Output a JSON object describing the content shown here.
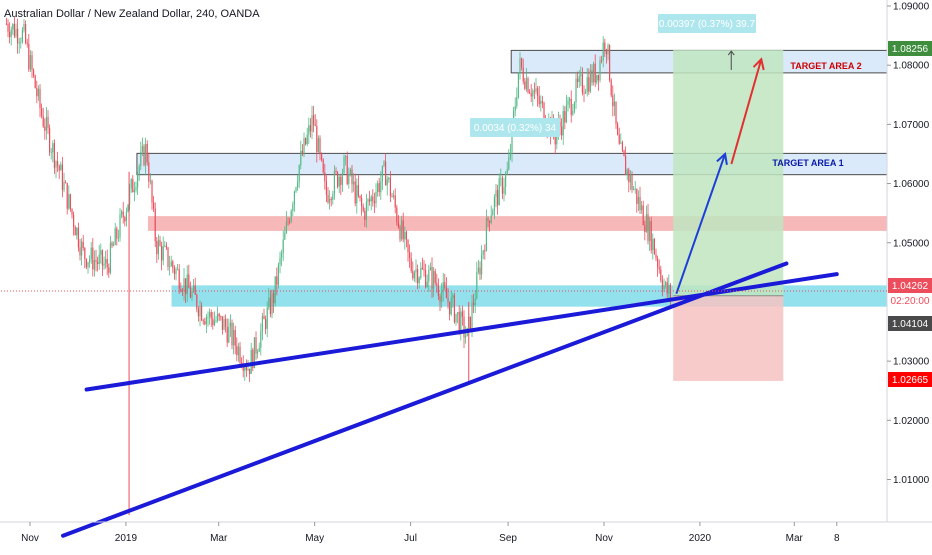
{
  "header": {
    "title": "Australian Dollar / New Zealand Dollar, 240, OANDA"
  },
  "colors": {
    "up": "#53b987",
    "down": "#eb4d5c",
    "trendline": "#1a1ad8",
    "zone_blue": "#bcd9f7",
    "zone_red": "#f4a6a6",
    "zone_cyan": "#7fdcea",
    "long_profit": "#bfe5bf",
    "long_loss": "#f7c2c2",
    "arrow_blue": "#1d3fd8",
    "arrow_red": "#e23030",
    "target_red_text": "#cc0000",
    "target_blue_text": "#0a1aa8",
    "last_price": "#131722",
    "stop_price": "#ff0000",
    "target_price": "#3e8e3e"
  },
  "annotations": {
    "target_area_1": "TARGET AREA 1",
    "target_area_2": "TARGET AREA 2",
    "measure_top": "0.00397 (0.37%) 39.7",
    "measure_mid": "0.0034 (0.32%) 34"
  },
  "price_labels": {
    "target": "1.08256",
    "last": "1.04262",
    "countdown": "02:20:00",
    "entry": "1.04104",
    "stop": "1.02665"
  },
  "chart_data": {
    "type": "candlestick",
    "title": "Australian Dollar / New Zealand Dollar, 240, OANDA",
    "y_axis": {
      "ticks": [
        "1.09000",
        "1.08000",
        "1.07000",
        "1.06000",
        "1.05000",
        "1.03000",
        "1.02000",
        "1.01000"
      ],
      "range": [
        1.0012,
        1.0907
      ]
    },
    "x_axis": {
      "ticks": [
        "Nov",
        "2019",
        "Mar",
        "May",
        "Jul",
        "Sep",
        "Nov",
        "2020",
        "Mar",
        "8"
      ],
      "range": [
        "2018-10-15",
        "2020-04-12"
      ]
    },
    "price_path": [
      {
        "date": "2018-10-17",
        "price": 1.087
      },
      {
        "date": "2018-10-28",
        "price": 1.085
      },
      {
        "date": "2018-11-08",
        "price": 1.072
      },
      {
        "date": "2018-11-20",
        "price": 1.062
      },
      {
        "date": "2018-12-05",
        "price": 1.048
      },
      {
        "date": "2018-12-20",
        "price": 1.046
      },
      {
        "date": "2019-01-08",
        "price": 1.062
      },
      {
        "date": "2019-01-14",
        "price": 1.066
      },
      {
        "date": "2019-01-20",
        "price": 1.05
      },
      {
        "date": "2019-02-05",
        "price": 1.044
      },
      {
        "date": "2019-02-20",
        "price": 1.038
      },
      {
        "date": "2019-03-05",
        "price": 1.036
      },
      {
        "date": "2019-03-20",
        "price": 1.029
      },
      {
        "date": "2019-04-05",
        "price": 1.041
      },
      {
        "date": "2019-04-20",
        "price": 1.062
      },
      {
        "date": "2019-04-30",
        "price": 1.071
      },
      {
        "date": "2019-05-08",
        "price": 1.058
      },
      {
        "date": "2019-05-20",
        "price": 1.063
      },
      {
        "date": "2019-06-01",
        "price": 1.055
      },
      {
        "date": "2019-06-15",
        "price": 1.062
      },
      {
        "date": "2019-07-01",
        "price": 1.046
      },
      {
        "date": "2019-07-15",
        "price": 1.044
      },
      {
        "date": "2019-07-28",
        "price": 1.039
      },
      {
        "date": "2019-08-06",
        "price": 1.034
      },
      {
        "date": "2019-08-20",
        "price": 1.055
      },
      {
        "date": "2019-09-01",
        "price": 1.062
      },
      {
        "date": "2019-09-08",
        "price": 1.08
      },
      {
        "date": "2019-09-20",
        "price": 1.074
      },
      {
        "date": "2019-10-01",
        "price": 1.068
      },
      {
        "date": "2019-10-15",
        "price": 1.076
      },
      {
        "date": "2019-10-28",
        "price": 1.079
      },
      {
        "date": "2019-11-02",
        "price": 1.085
      },
      {
        "date": "2019-11-10",
        "price": 1.066
      },
      {
        "date": "2019-11-20",
        "price": 1.059
      },
      {
        "date": "2019-12-01",
        "price": 1.051
      },
      {
        "date": "2019-12-10",
        "price": 1.042
      },
      {
        "date": "2019-12-14",
        "price": 1.041
      }
    ],
    "wicks": [
      {
        "date": "2019-01-03",
        "low": 1.004,
        "high": 1.062,
        "direction": "down"
      },
      {
        "date": "2019-08-07",
        "low": 1.0265,
        "high": 1.04,
        "direction": "down"
      }
    ],
    "zones": [
      {
        "name": "TARGET AREA 2",
        "y_low": 1.0787,
        "y_high": 1.0825,
        "from": "2019-09-03",
        "to": "2020-04-12",
        "color": "blue"
      },
      {
        "name": "TARGET AREA 1",
        "y_low": 1.0615,
        "y_high": 1.0651,
        "from": "2019-01-08",
        "to": "2020-04-12",
        "color": "blue"
      },
      {
        "y_low": 1.052,
        "y_high": 1.0545,
        "from": "2019-01-15",
        "to": "2020-04-12",
        "color": "red"
      },
      {
        "y_low": 1.0392,
        "y_high": 1.0428,
        "from": "2019-01-30",
        "to": "2020-04-12",
        "color": "cyan"
      }
    ],
    "trendlines": [
      {
        "from": {
          "date": "2018-12-07",
          "price": 1.0252
        },
        "to": {
          "date": "2020-03-28",
          "price": 1.0447
        }
      },
      {
        "from": {
          "date": "2018-11-22",
          "price": 1.0005
        },
        "to": {
          "date": "2020-02-25",
          "price": 1.0465
        }
      }
    ],
    "long_position": {
      "from": "2019-12-15",
      "to": "2020-02-23",
      "entry": 1.04104,
      "target": 1.08256,
      "stop": 1.02665
    },
    "arrows": [
      {
        "from": {
          "date": "2019-12-17",
          "price": 1.0414
        },
        "to": {
          "date": "2020-01-17",
          "price": 1.065
        },
        "color": "blue"
      },
      {
        "from": {
          "date": "2020-01-21",
          "price": 1.0633
        },
        "to": {
          "date": "2020-02-09",
          "price": 1.081
        },
        "color": "red"
      }
    ],
    "last_price": 1.04262,
    "legend": "none",
    "grid": false
  }
}
